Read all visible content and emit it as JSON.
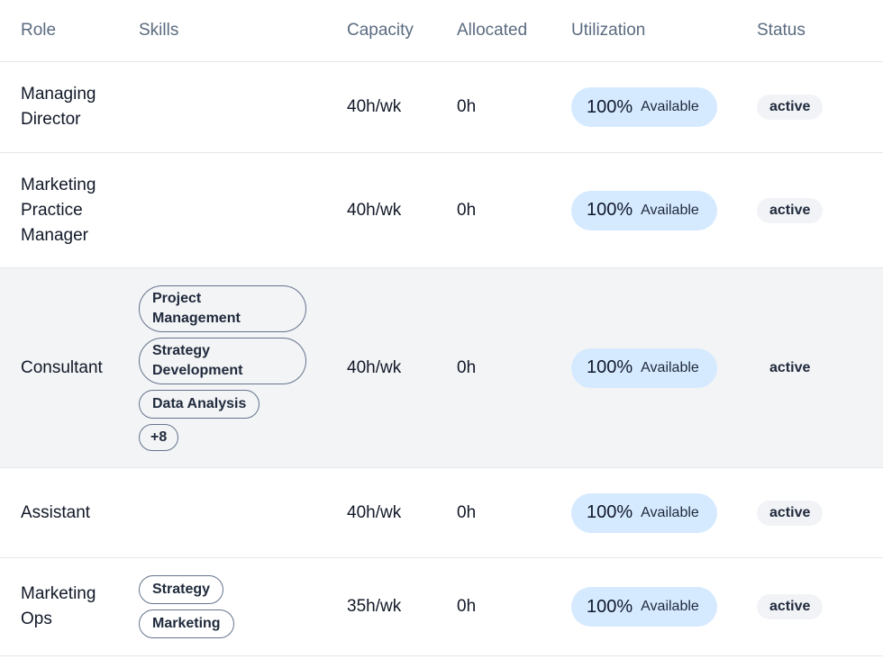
{
  "headers": {
    "role": "Role",
    "skills": "Skills",
    "capacity": "Capacity",
    "allocated": "Allocated",
    "utilization": "Utilization",
    "status": "Status"
  },
  "rows": [
    {
      "role": "Managing Director",
      "skills": [],
      "capacity": "40h/wk",
      "allocated": "0h",
      "utilization": {
        "percent": "100%",
        "label": "Available"
      },
      "status": "active"
    },
    {
      "role": "Marketing Practice Manager",
      "skills": [],
      "capacity": "40h/wk",
      "allocated": "0h",
      "utilization": {
        "percent": "100%",
        "label": "Available"
      },
      "status": "active"
    },
    {
      "role": "Consultant",
      "skills": [
        "Project Management",
        "Strategy Development",
        "Data Analysis",
        "+8"
      ],
      "capacity": "40h/wk",
      "allocated": "0h",
      "utilization": {
        "percent": "100%",
        "label": "Available"
      },
      "status": "active"
    },
    {
      "role": "Assistant",
      "skills": [],
      "capacity": "40h/wk",
      "allocated": "0h",
      "utilization": {
        "percent": "100%",
        "label": "Available"
      },
      "status": "active"
    },
    {
      "role": "Marketing Ops",
      "skills": [
        "Strategy",
        "Marketing"
      ],
      "capacity": "35h/wk",
      "allocated": "0h",
      "utilization": {
        "percent": "100%",
        "label": "Available"
      },
      "status": "active"
    }
  ],
  "colors": {
    "header_text": "#5b6b80",
    "util_pill_bg": "#d6eaff",
    "status_badge_bg": "#f1f3f6",
    "highlight_row_bg": "#f3f4f6",
    "border": "#e5e7eb"
  }
}
